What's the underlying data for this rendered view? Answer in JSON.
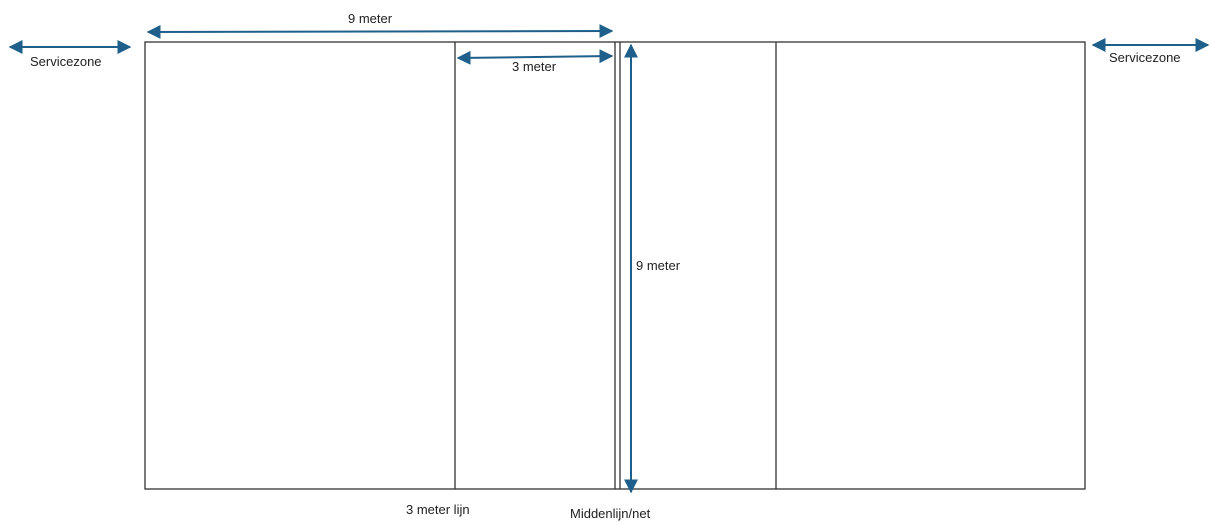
{
  "labels": {
    "width_top": "9 meter",
    "three_meter_top": "3 meter",
    "depth_vertical": "9 meter",
    "service_left": "Servicezone",
    "service_right": "Servicezone",
    "attack_line": "3 meter lijn",
    "center_line": "Middenlijn/net"
  },
  "colors": {
    "arrow": "#1f5f8b",
    "lines": "#333333"
  }
}
